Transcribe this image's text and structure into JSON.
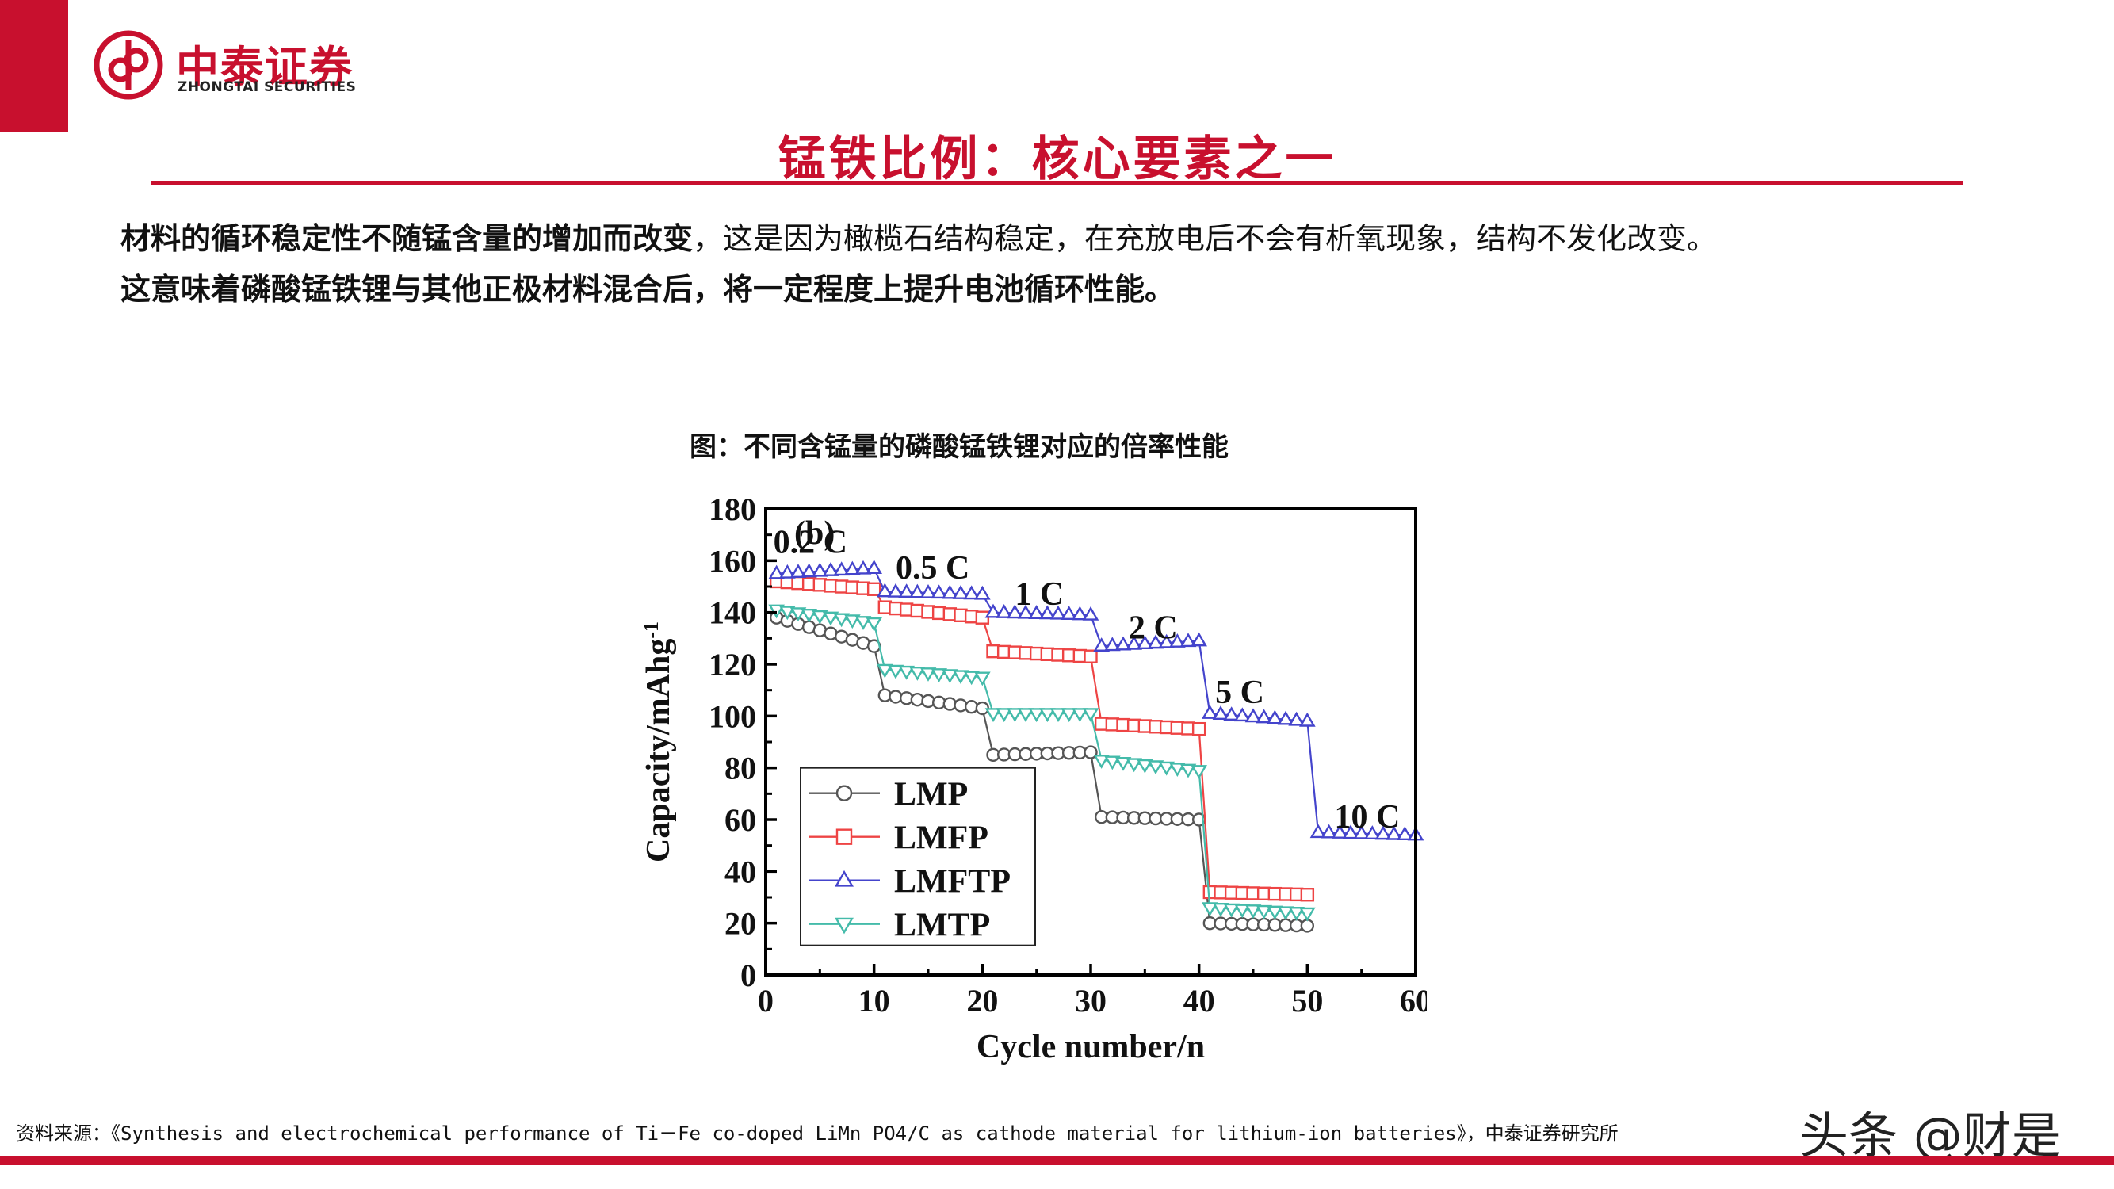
{
  "header": {
    "logo_cn": "中泰证券",
    "logo_en": "ZHONGTAI SECURITIES",
    "title": "锰铁比例：核心要素之一",
    "accent_color": "#c8102e"
  },
  "body": {
    "para1_bold": "材料的循环稳定性不随锰含量的增加而改变",
    "para1_rest": "，这是因为橄榄石结构稳定，在充放电后不会有析氧现象，结构不发化改变。",
    "para2": "这意味着磷酸锰铁锂与其他正极材料混合后，将一定程度上提升电池循环性能。"
  },
  "figure": {
    "title": "图：不同含锰量的磷酸锰铁锂对应的倍率性能"
  },
  "chart_data": {
    "type": "scatter",
    "panel_label": "(b)",
    "xlabel": "Cycle number/n",
    "ylabel": "Capacity/mAhg",
    "ylabel_sup": "-1",
    "xlim": [
      0,
      60
    ],
    "ylim": [
      0,
      180
    ],
    "xticks": [
      0,
      10,
      20,
      30,
      40,
      50,
      60
    ],
    "yticks": [
      0,
      20,
      40,
      60,
      80,
      100,
      120,
      140,
      160,
      180
    ],
    "legend_position": "bottom-left",
    "rate_labels": [
      {
        "text": "0.2 C",
        "x": 0.7,
        "y": 163
      },
      {
        "text": "0.5 C",
        "x": 12,
        "y": 153
      },
      {
        "text": "1 C",
        "x": 23,
        "y": 143
      },
      {
        "text": "2 C",
        "x": 33.5,
        "y": 130
      },
      {
        "text": "5 C",
        "x": 41.5,
        "y": 105
      },
      {
        "text": "10 C",
        "x": 52.5,
        "y": 57
      }
    ],
    "series": [
      {
        "name": "LMP",
        "marker": "circle",
        "color": "#555555",
        "segments": [
          {
            "x0": 1,
            "x1": 10,
            "start": 138,
            "end": 127
          },
          {
            "x0": 11,
            "x1": 20,
            "start": 108,
            "end": 103
          },
          {
            "x0": 21,
            "x1": 30,
            "start": 85,
            "end": 86
          },
          {
            "x0": 31,
            "x1": 40,
            "start": 61,
            "end": 60
          },
          {
            "x0": 41,
            "x1": 50,
            "start": 20,
            "end": 19
          }
        ]
      },
      {
        "name": "LMFP",
        "marker": "square",
        "color": "#ee4444",
        "segments": [
          {
            "x0": 1,
            "x1": 10,
            "start": 152,
            "end": 149
          },
          {
            "x0": 11,
            "x1": 20,
            "start": 142,
            "end": 138
          },
          {
            "x0": 21,
            "x1": 30,
            "start": 125,
            "end": 123
          },
          {
            "x0": 31,
            "x1": 40,
            "start": 97,
            "end": 95
          },
          {
            "x0": 41,
            "x1": 50,
            "start": 32,
            "end": 31
          }
        ]
      },
      {
        "name": "LMFTP",
        "marker": "triangle-up",
        "color": "#4444cc",
        "segments": [
          {
            "x0": 1,
            "x1": 10,
            "start": 155,
            "end": 157
          },
          {
            "x0": 11,
            "x1": 20,
            "start": 148,
            "end": 147
          },
          {
            "x0": 21,
            "x1": 30,
            "start": 140,
            "end": 139
          },
          {
            "x0": 31,
            "x1": 40,
            "start": 127,
            "end": 129
          },
          {
            "x0": 41,
            "x1": 50,
            "start": 101,
            "end": 98
          },
          {
            "x0": 51,
            "x1": 60,
            "start": 55,
            "end": 54
          }
        ]
      },
      {
        "name": "LMTP",
        "marker": "triangle-down",
        "color": "#44bbaa",
        "segments": [
          {
            "x0": 1,
            "x1": 10,
            "start": 141,
            "end": 136
          },
          {
            "x0": 11,
            "x1": 20,
            "start": 118,
            "end": 115
          },
          {
            "x0": 21,
            "x1": 30,
            "start": 101,
            "end": 101
          },
          {
            "x0": 31,
            "x1": 40,
            "start": 83,
            "end": 79
          },
          {
            "x0": 41,
            "x1": 50,
            "start": 26,
            "end": 24
          }
        ]
      }
    ]
  },
  "footer": {
    "source": "资料来源：《Synthesis and electrochemical performance of Ti－Fe co-doped LiMn PO4/C as cathode material for lithium-ion batteries》，中泰证券研究所",
    "watermark": "头条 @财是"
  }
}
